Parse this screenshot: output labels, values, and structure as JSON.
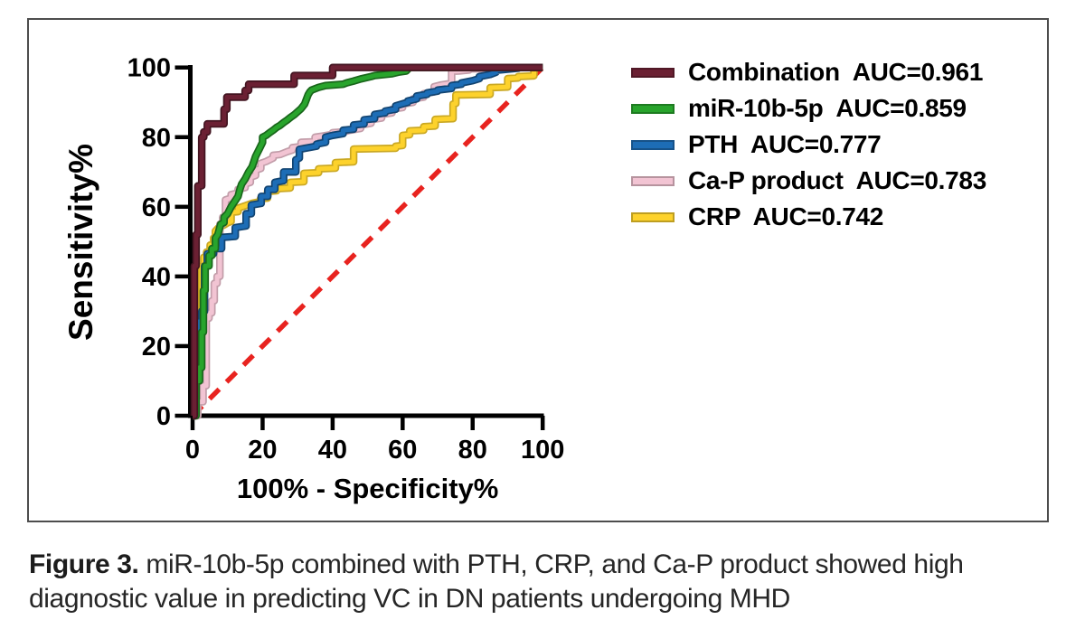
{
  "figure": {
    "caption_bold": "Figure 3.",
    "caption_line1": " miR-10b-5p combined with PTH, CRP, and Ca-P product showed high",
    "caption_line2": "diagnostic value in predicting VC in DN patients undergoing MHD"
  },
  "chart_data": {
    "type": "line",
    "subtype": "roc-step-curves",
    "title": "",
    "xlabel": "100% - Specificity%",
    "ylabel": "Sensitivity%",
    "xlim": [
      0,
      100
    ],
    "ylim": [
      0,
      100
    ],
    "x_ticks": [
      0,
      20,
      40,
      60,
      80,
      100
    ],
    "y_ticks": [
      0,
      20,
      40,
      60,
      80,
      100
    ],
    "grid": false,
    "legend_position": "right",
    "axis_color": "#000000",
    "reference_line": {
      "name": "chance-diagonal",
      "from": [
        0,
        0
      ],
      "to": [
        100,
        100
      ],
      "color": "#e8231f",
      "style": "dashed"
    },
    "series": [
      {
        "name": "CRP",
        "auc": 0.742,
        "legend_label": "CRP  AUC=0.742",
        "color": "#fdd22c",
        "points": [
          [
            0,
            0
          ],
          [
            1,
            0
          ],
          [
            1,
            15
          ],
          [
            1.5,
            15
          ],
          [
            1.5,
            28
          ],
          [
            2,
            28
          ],
          [
            2,
            30
          ],
          [
            2.6,
            30
          ],
          [
            2.6,
            43
          ],
          [
            3.2,
            43
          ],
          [
            3.2,
            45.5
          ],
          [
            4,
            45.5
          ],
          [
            4,
            47
          ],
          [
            5,
            47
          ],
          [
            5,
            49
          ],
          [
            6,
            49
          ],
          [
            6,
            51
          ],
          [
            6.5,
            51
          ],
          [
            6.5,
            53
          ],
          [
            7.2,
            53.8
          ],
          [
            8,
            54.3
          ],
          [
            9,
            54.8
          ],
          [
            10,
            55.4
          ],
          [
            11,
            55.8
          ],
          [
            11,
            58.4
          ],
          [
            13,
            58.6
          ],
          [
            13,
            59.6
          ],
          [
            15,
            60.3
          ],
          [
            17,
            61
          ],
          [
            19.4,
            61.5
          ],
          [
            19.4,
            62.3
          ],
          [
            21.4,
            62.5
          ],
          [
            21.4,
            64.4
          ],
          [
            24,
            64.6
          ],
          [
            24,
            65.2
          ],
          [
            27.9,
            65.4
          ],
          [
            27.9,
            67
          ],
          [
            31.8,
            67.2
          ],
          [
            31.8,
            69.6
          ],
          [
            36,
            69.8
          ],
          [
            36,
            70.9
          ],
          [
            40.8,
            71.1
          ],
          [
            40.8,
            72.7
          ],
          [
            46,
            72.9
          ],
          [
            46,
            76.6
          ],
          [
            58,
            76.8
          ],
          [
            58,
            77.4
          ],
          [
            60,
            77.6
          ],
          [
            60,
            80.5
          ],
          [
            62,
            80.7
          ],
          [
            62,
            81.8
          ],
          [
            66,
            82
          ],
          [
            66,
            83
          ],
          [
            69.3,
            83.2
          ],
          [
            69.3,
            85.1
          ],
          [
            74.4,
            85.3
          ],
          [
            74.4,
            89.5
          ],
          [
            75.2,
            89.7
          ],
          [
            75.2,
            92.1
          ],
          [
            85,
            92.3
          ],
          [
            85,
            94.2
          ],
          [
            90,
            94.4
          ],
          [
            90,
            96.8
          ],
          [
            93,
            97
          ],
          [
            93,
            97.4
          ],
          [
            97.5,
            97.6
          ],
          [
            97.5,
            100
          ],
          [
            100,
            100
          ]
        ]
      },
      {
        "name": "Ca-P product",
        "auc": 0.783,
        "legend_label": "Ca-P product  AUC=0.783",
        "color": "#f2c4d3",
        "points": [
          [
            0,
            0
          ],
          [
            1.5,
            0
          ],
          [
            1.5,
            4
          ],
          [
            3,
            4
          ],
          [
            3,
            8.6
          ],
          [
            3.9,
            8.6
          ],
          [
            3.9,
            28
          ],
          [
            4.7,
            28
          ],
          [
            4.7,
            29.5
          ],
          [
            5.5,
            29.5
          ],
          [
            5.5,
            33
          ],
          [
            6.2,
            33
          ],
          [
            6.2,
            38
          ],
          [
            7,
            38
          ],
          [
            7,
            40
          ],
          [
            7.8,
            40
          ],
          [
            7.8,
            55
          ],
          [
            8.6,
            55
          ],
          [
            8.6,
            57
          ],
          [
            9.4,
            57
          ],
          [
            9.4,
            62
          ],
          [
            11,
            62.5
          ],
          [
            11,
            63.5
          ],
          [
            13,
            64
          ],
          [
            13,
            65
          ],
          [
            15,
            65.5
          ],
          [
            15,
            66.5
          ],
          [
            16.5,
            67
          ],
          [
            16.5,
            68.5
          ],
          [
            18,
            69
          ],
          [
            18,
            70.5
          ],
          [
            19.5,
            71
          ],
          [
            19.5,
            72.5
          ],
          [
            21,
            73
          ],
          [
            23,
            74
          ],
          [
            23,
            74.8
          ],
          [
            25,
            75
          ],
          [
            27,
            75.8
          ],
          [
            28.5,
            76.3
          ],
          [
            28.5,
            77
          ],
          [
            31,
            77.3
          ],
          [
            31,
            78.5
          ],
          [
            35,
            78.7
          ],
          [
            35,
            80
          ],
          [
            37,
            80.3
          ],
          [
            40,
            80.8
          ],
          [
            40,
            81.3
          ],
          [
            43,
            81.5
          ],
          [
            45,
            82
          ],
          [
            48,
            82.5
          ],
          [
            48,
            83.5
          ],
          [
            51,
            84
          ],
          [
            51,
            85
          ],
          [
            54,
            85.5
          ],
          [
            54,
            86.5
          ],
          [
            57,
            87
          ],
          [
            57,
            88
          ],
          [
            60,
            88.5
          ],
          [
            60,
            89.5
          ],
          [
            63,
            90
          ],
          [
            63,
            91
          ],
          [
            66,
            91.5
          ],
          [
            66,
            92.5
          ],
          [
            69,
            93
          ],
          [
            69,
            94.5
          ],
          [
            71,
            95
          ],
          [
            73,
            95.3
          ],
          [
            74,
            95.5
          ],
          [
            74,
            98.9
          ],
          [
            76,
            99
          ],
          [
            79,
            99.3
          ],
          [
            79,
            99.6
          ],
          [
            83,
            99.6
          ],
          [
            83,
            100
          ],
          [
            100,
            100
          ]
        ]
      },
      {
        "name": "PTH",
        "auc": 0.777,
        "legend_label": "PTH  AUC=0.777",
        "color": "#1d6db6",
        "points": [
          [
            0,
            0
          ],
          [
            0.8,
            0
          ],
          [
            0.8,
            14
          ],
          [
            1.3,
            14
          ],
          [
            1.3,
            22.5
          ],
          [
            1.8,
            22.5
          ],
          [
            1.8,
            27
          ],
          [
            2.6,
            27
          ],
          [
            2.6,
            30
          ],
          [
            3.4,
            30
          ],
          [
            3.4,
            43
          ],
          [
            4.2,
            43
          ],
          [
            4.2,
            46.5
          ],
          [
            6,
            46.5
          ],
          [
            6,
            48
          ],
          [
            8.3,
            48
          ],
          [
            8.3,
            51.2
          ],
          [
            12.2,
            51.5
          ],
          [
            12.2,
            54
          ],
          [
            15.3,
            54.5
          ],
          [
            15.3,
            58
          ],
          [
            16.8,
            58
          ],
          [
            16.8,
            60.5
          ],
          [
            19.6,
            61
          ],
          [
            19.6,
            63
          ],
          [
            21.5,
            63
          ],
          [
            21.5,
            65
          ],
          [
            23.5,
            65
          ],
          [
            23.5,
            67
          ],
          [
            26,
            67.5
          ],
          [
            26,
            70
          ],
          [
            29.5,
            70
          ],
          [
            29.5,
            73.5
          ],
          [
            30.5,
            74
          ],
          [
            30.5,
            76.5
          ],
          [
            35.4,
            77.4
          ],
          [
            35.4,
            78
          ],
          [
            38,
            78.5
          ],
          [
            38,
            80
          ],
          [
            40,
            80.5
          ],
          [
            43,
            81
          ],
          [
            43,
            82
          ],
          [
            46,
            82.3
          ],
          [
            46,
            83.5
          ],
          [
            49,
            83.8
          ],
          [
            49,
            85
          ],
          [
            52,
            85.3
          ],
          [
            52,
            86.5
          ],
          [
            55,
            87
          ],
          [
            55,
            87.5
          ],
          [
            58,
            88
          ],
          [
            58,
            89
          ],
          [
            61.5,
            90
          ],
          [
            61.5,
            90.4
          ],
          [
            64,
            91
          ],
          [
            64,
            91.8
          ],
          [
            67,
            92.3
          ],
          [
            67,
            92.7
          ],
          [
            70,
            93.2
          ],
          [
            70,
            93.5
          ],
          [
            74,
            94
          ],
          [
            74,
            94.8
          ],
          [
            76.8,
            95.2
          ],
          [
            76.8,
            95.6
          ],
          [
            80,
            96.2
          ],
          [
            81.9,
            96.8
          ],
          [
            81.9,
            97.4
          ],
          [
            85,
            98
          ],
          [
            86.6,
            98.6
          ],
          [
            86.6,
            99.2
          ],
          [
            90,
            99.5
          ],
          [
            93,
            99.8
          ],
          [
            93,
            100
          ],
          [
            100,
            100
          ]
        ]
      },
      {
        "name": "miR-10b-5p",
        "auc": 0.859,
        "legend_label": "miR-10b-5p  AUC=0.859",
        "color": "#28a42c",
        "points": [
          [
            0,
            0
          ],
          [
            1,
            0
          ],
          [
            1,
            10
          ],
          [
            2,
            10
          ],
          [
            2,
            13.8
          ],
          [
            2.6,
            13.8
          ],
          [
            2.6,
            24
          ],
          [
            3.1,
            24
          ],
          [
            3.1,
            36
          ],
          [
            3.6,
            36
          ],
          [
            3.6,
            43
          ],
          [
            4.7,
            43
          ],
          [
            4.7,
            46
          ],
          [
            5.5,
            46
          ],
          [
            5.5,
            48
          ],
          [
            6.5,
            48
          ],
          [
            6.5,
            51
          ],
          [
            7.2,
            52
          ],
          [
            8,
            55
          ],
          [
            9,
            55.5
          ],
          [
            9,
            57
          ],
          [
            10,
            58
          ],
          [
            11,
            60
          ],
          [
            12,
            61.5
          ],
          [
            13,
            63
          ],
          [
            13.5,
            65
          ],
          [
            14,
            66.5
          ],
          [
            15,
            68
          ],
          [
            16,
            70
          ],
          [
            17,
            71.5
          ],
          [
            17.5,
            73
          ],
          [
            18,
            74.5
          ],
          [
            19,
            76.5
          ],
          [
            20,
            78.5
          ],
          [
            20,
            80
          ],
          [
            21,
            80.5
          ],
          [
            22,
            81.3
          ],
          [
            23,
            82
          ],
          [
            24,
            82.8
          ],
          [
            25,
            83.4
          ],
          [
            26,
            84.2
          ],
          [
            27,
            84.9
          ],
          [
            28,
            85.7
          ],
          [
            29,
            86.4
          ],
          [
            30,
            87.3
          ],
          [
            31,
            88.2
          ],
          [
            32,
            89.5
          ],
          [
            32.5,
            90.8
          ],
          [
            33,
            92.2
          ],
          [
            33.5,
            93
          ],
          [
            34,
            93.5
          ],
          [
            36,
            94.3
          ],
          [
            38,
            94.8
          ],
          [
            43,
            95.2
          ],
          [
            44,
            95.6
          ],
          [
            46,
            96.1
          ],
          [
            48,
            96.7
          ],
          [
            51,
            97.4
          ],
          [
            52,
            97.7
          ],
          [
            57,
            98.2
          ],
          [
            59,
            98.7
          ],
          [
            61,
            99
          ],
          [
            62,
            100
          ],
          [
            100,
            100
          ]
        ]
      },
      {
        "name": "Combination",
        "auc": 0.961,
        "legend_label": "Combination  AUC=0.961",
        "color": "#6b2033",
        "points": [
          [
            0,
            0
          ],
          [
            0.5,
            0
          ],
          [
            0.5,
            43
          ],
          [
            1,
            43
          ],
          [
            1,
            52
          ],
          [
            1.5,
            52
          ],
          [
            1.5,
            66
          ],
          [
            2.6,
            66
          ],
          [
            2.6,
            80
          ],
          [
            3.2,
            80
          ],
          [
            3.2,
            81.5
          ],
          [
            4.2,
            81.5
          ],
          [
            4.2,
            83.8
          ],
          [
            9,
            83.8
          ],
          [
            9,
            88
          ],
          [
            9.8,
            88
          ],
          [
            9.8,
            91.5
          ],
          [
            15,
            91.5
          ],
          [
            15,
            93.4
          ],
          [
            16,
            93.4
          ],
          [
            16,
            95.2
          ],
          [
            29,
            95.2
          ],
          [
            29,
            97.7
          ],
          [
            40,
            97.7
          ],
          [
            40,
            100
          ],
          [
            100,
            100
          ]
        ]
      }
    ]
  }
}
